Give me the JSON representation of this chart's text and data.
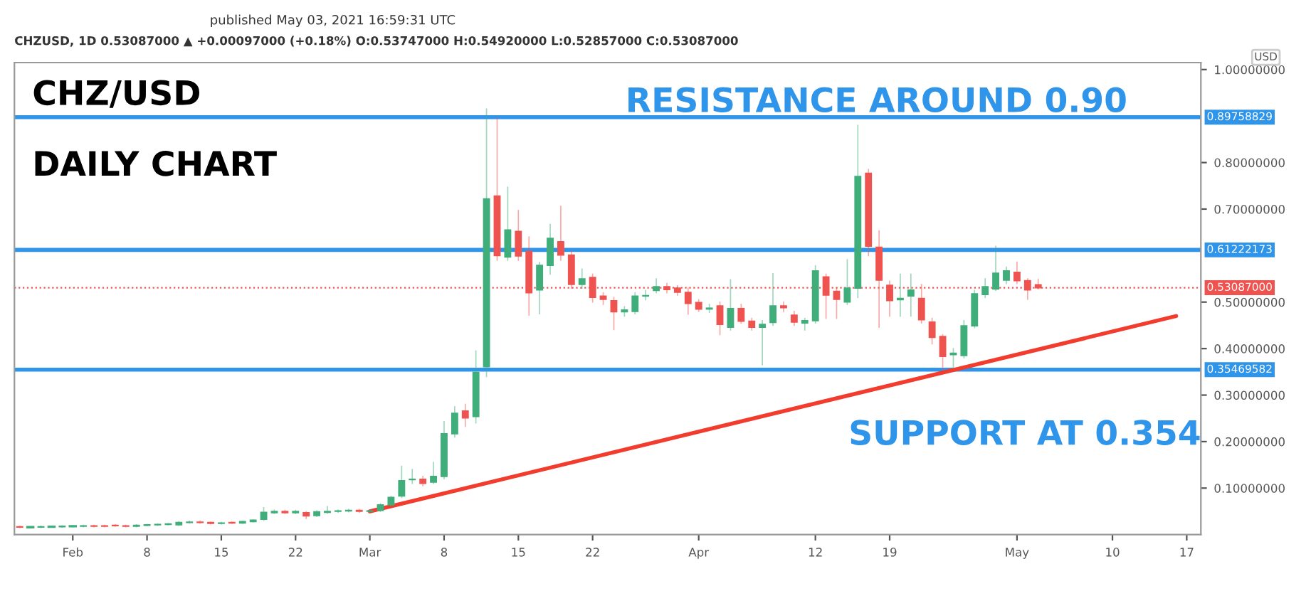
{
  "chart_data": {
    "type": "candlestick",
    "x": [
      "2021-01-27",
      "2021-01-28",
      "2021-01-29",
      "2021-01-30",
      "2021-01-31",
      "2021-02-01",
      "2021-02-02",
      "2021-02-03",
      "2021-02-04",
      "2021-02-05",
      "2021-02-06",
      "2021-02-07",
      "2021-02-08",
      "2021-02-09",
      "2021-02-10",
      "2021-02-11",
      "2021-02-12",
      "2021-02-13",
      "2021-02-14",
      "2021-02-15",
      "2021-02-16",
      "2021-02-17",
      "2021-02-18",
      "2021-02-19",
      "2021-02-20",
      "2021-02-21",
      "2021-02-22",
      "2021-02-23",
      "2021-02-24",
      "2021-02-25",
      "2021-02-26",
      "2021-02-27",
      "2021-02-28",
      "2021-03-01",
      "2021-03-02",
      "2021-03-03",
      "2021-03-04",
      "2021-03-05",
      "2021-03-06",
      "2021-03-07",
      "2021-03-08",
      "2021-03-09",
      "2021-03-10",
      "2021-03-11",
      "2021-03-12",
      "2021-03-13",
      "2021-03-14",
      "2021-03-15",
      "2021-03-16",
      "2021-03-17",
      "2021-03-18",
      "2021-03-19",
      "2021-03-20",
      "2021-03-21",
      "2021-03-22",
      "2021-03-23",
      "2021-03-24",
      "2021-03-25",
      "2021-03-26",
      "2021-03-27",
      "2021-03-28",
      "2021-03-29",
      "2021-03-30",
      "2021-03-31",
      "2021-04-01",
      "2021-04-02",
      "2021-04-03",
      "2021-04-04",
      "2021-04-05",
      "2021-04-06",
      "2021-04-07",
      "2021-04-08",
      "2021-04-09",
      "2021-04-10",
      "2021-04-11",
      "2021-04-12",
      "2021-04-13",
      "2021-04-14",
      "2021-04-15",
      "2021-04-16",
      "2021-04-17",
      "2021-04-18",
      "2021-04-19",
      "2021-04-20",
      "2021-04-21",
      "2021-04-22",
      "2021-04-23",
      "2021-04-24",
      "2021-04-25",
      "2021-04-26",
      "2021-04-27",
      "2021-04-28",
      "2021-04-29",
      "2021-04-30",
      "2021-05-01",
      "2021-05-02",
      "2021-05-03"
    ],
    "ohlc": [
      [
        0.017,
        0.018,
        0.015,
        0.016
      ],
      [
        0.016,
        0.017,
        0.015,
        0.016
      ],
      [
        0.016,
        0.018,
        0.015,
        0.017
      ],
      [
        0.017,
        0.018,
        0.016,
        0.017
      ],
      [
        0.017,
        0.019,
        0.016,
        0.018
      ],
      [
        0.018,
        0.019,
        0.017,
        0.018
      ],
      [
        0.018,
        0.02,
        0.017,
        0.019
      ],
      [
        0.019,
        0.02,
        0.017,
        0.018
      ],
      [
        0.019,
        0.02,
        0.017,
        0.018
      ],
      [
        0.02,
        0.021,
        0.018,
        0.019
      ],
      [
        0.019,
        0.02,
        0.017,
        0.018
      ],
      [
        0.018,
        0.021,
        0.017,
        0.02
      ],
      [
        0.02,
        0.022,
        0.019,
        0.021
      ],
      [
        0.021,
        0.023,
        0.02,
        0.022
      ],
      [
        0.022,
        0.024,
        0.021,
        0.023
      ],
      [
        0.021,
        0.028,
        0.02,
        0.026
      ],
      [
        0.026,
        0.029,
        0.025,
        0.027
      ],
      [
        0.027,
        0.029,
        0.025,
        0.026
      ],
      [
        0.026,
        0.027,
        0.023,
        0.024
      ],
      [
        0.024,
        0.026,
        0.023,
        0.025
      ],
      [
        0.026,
        0.027,
        0.024,
        0.025
      ],
      [
        0.025,
        0.029,
        0.024,
        0.028
      ],
      [
        0.028,
        0.032,
        0.027,
        0.031
      ],
      [
        0.033,
        0.058,
        0.031,
        0.048
      ],
      [
        0.047,
        0.053,
        0.045,
        0.05
      ],
      [
        0.05,
        0.052,
        0.046,
        0.047
      ],
      [
        0.047,
        0.052,
        0.045,
        0.05
      ],
      [
        0.047,
        0.049,
        0.035,
        0.04
      ],
      [
        0.041,
        0.051,
        0.039,
        0.049
      ],
      [
        0.048,
        0.06,
        0.046,
        0.05
      ],
      [
        0.05,
        0.053,
        0.048,
        0.051
      ],
      [
        0.051,
        0.054,
        0.049,
        0.052
      ],
      [
        0.052,
        0.054,
        0.048,
        0.05
      ],
      [
        0.05,
        0.053,
        0.048,
        0.051
      ],
      [
        0.052,
        0.066,
        0.05,
        0.064
      ],
      [
        0.064,
        0.082,
        0.062,
        0.08
      ],
      [
        0.083,
        0.147,
        0.08,
        0.116
      ],
      [
        0.118,
        0.14,
        0.11,
        0.119
      ],
      [
        0.119,
        0.125,
        0.105,
        0.11
      ],
      [
        0.113,
        0.155,
        0.11,
        0.125
      ],
      [
        0.125,
        0.243,
        0.12,
        0.217
      ],
      [
        0.217,
        0.275,
        0.21,
        0.261
      ],
      [
        0.266,
        0.28,
        0.233,
        0.251
      ],
      [
        0.254,
        0.395,
        0.24,
        0.349
      ],
      [
        0.361,
        0.915,
        0.34,
        0.722
      ],
      [
        0.728,
        0.896,
        0.59,
        0.6
      ],
      [
        0.597,
        0.747,
        0.59,
        0.655
      ],
      [
        0.652,
        0.697,
        0.59,
        0.599
      ],
      [
        0.609,
        0.64,
        0.472,
        0.52
      ],
      [
        0.526,
        0.585,
        0.475,
        0.579
      ],
      [
        0.579,
        0.667,
        0.56,
        0.637
      ],
      [
        0.63,
        0.706,
        0.59,
        0.601
      ],
      [
        0.601,
        0.61,
        0.53,
        0.538
      ],
      [
        0.538,
        0.571,
        0.53,
        0.55
      ],
      [
        0.553,
        0.56,
        0.5,
        0.51
      ],
      [
        0.513,
        0.52,
        0.495,
        0.506
      ],
      [
        0.503,
        0.51,
        0.441,
        0.479
      ],
      [
        0.479,
        0.49,
        0.47,
        0.483
      ],
      [
        0.48,
        0.52,
        0.475,
        0.513
      ],
      [
        0.513,
        0.525,
        0.505,
        0.514
      ],
      [
        0.525,
        0.55,
        0.52,
        0.533
      ],
      [
        0.533,
        0.54,
        0.52,
        0.527
      ],
      [
        0.53,
        0.535,
        0.515,
        0.521
      ],
      [
        0.521,
        0.53,
        0.474,
        0.497
      ],
      [
        0.499,
        0.505,
        0.48,
        0.485
      ],
      [
        0.485,
        0.495,
        0.478,
        0.487
      ],
      [
        0.492,
        0.5,
        0.43,
        0.452
      ],
      [
        0.446,
        0.548,
        0.44,
        0.486
      ],
      [
        0.486,
        0.495,
        0.455,
        0.459
      ],
      [
        0.459,
        0.465,
        0.44,
        0.446
      ],
      [
        0.446,
        0.46,
        0.365,
        0.452
      ],
      [
        0.456,
        0.561,
        0.45,
        0.492
      ],
      [
        0.492,
        0.5,
        0.48,
        0.488
      ],
      [
        0.472,
        0.48,
        0.45,
        0.457
      ],
      [
        0.455,
        0.465,
        0.44,
        0.46
      ],
      [
        0.46,
        0.578,
        0.455,
        0.567
      ],
      [
        0.554,
        0.56,
        0.465,
        0.515
      ],
      [
        0.523,
        0.53,
        0.465,
        0.506
      ],
      [
        0.5,
        0.591,
        0.495,
        0.53
      ],
      [
        0.53,
        0.88,
        0.51,
        0.77
      ],
      [
        0.777,
        0.785,
        0.6,
        0.62
      ],
      [
        0.618,
        0.653,
        0.446,
        0.547
      ],
      [
        0.536,
        0.545,
        0.47,
        0.503
      ],
      [
        0.505,
        0.56,
        0.47,
        0.508
      ],
      [
        0.513,
        0.56,
        0.47,
        0.526
      ],
      [
        0.508,
        0.538,
        0.455,
        0.462
      ],
      [
        0.457,
        0.465,
        0.41,
        0.424
      ],
      [
        0.426,
        0.43,
        0.355,
        0.383
      ],
      [
        0.387,
        0.4,
        0.358,
        0.39
      ],
      [
        0.385,
        0.46,
        0.38,
        0.449
      ],
      [
        0.449,
        0.525,
        0.445,
        0.518
      ],
      [
        0.516,
        0.55,
        0.51,
        0.533
      ],
      [
        0.528,
        0.62,
        0.525,
        0.562
      ],
      [
        0.547,
        0.575,
        0.54,
        0.567
      ],
      [
        0.564,
        0.586,
        0.54,
        0.546
      ],
      [
        0.546,
        0.55,
        0.506,
        0.526
      ],
      [
        0.53747,
        0.5492,
        0.52857,
        0.53087
      ]
    ],
    "series": [
      {
        "type": "line",
        "x": [
          "2021-03-01",
          "2021-05-16"
        ],
        "values": [
          0.05,
          0.47
        ],
        "color": "#f23c2e"
      }
    ],
    "xlim": [
      "2021-01-26T12:00",
      "2021-05-18T08:00"
    ],
    "xticks": [
      {
        "value": "2021-02-01",
        "label": "Feb"
      },
      {
        "value": "2021-02-08",
        "label": "8"
      },
      {
        "value": "2021-02-15",
        "label": "15"
      },
      {
        "value": "2021-02-22",
        "label": "22"
      },
      {
        "value": "2021-03-01",
        "label": "Mar"
      },
      {
        "value": "2021-03-08",
        "label": "8"
      },
      {
        "value": "2021-03-15",
        "label": "15"
      },
      {
        "value": "2021-03-22",
        "label": "22"
      },
      {
        "value": "2021-04-01",
        "label": "Apr"
      },
      {
        "value": "2021-04-12",
        "label": "12"
      },
      {
        "value": "2021-04-19",
        "label": "19"
      },
      {
        "value": "2021-05-01",
        "label": "May"
      },
      {
        "value": "2021-05-10",
        "label": "10"
      },
      {
        "value": "2021-05-17",
        "label": "17"
      }
    ],
    "ylim": [
      0,
      1.015
    ],
    "yticks": [
      {
        "value": 0.1,
        "label": "0.10000000"
      },
      {
        "value": 0.2,
        "label": "0.20000000"
      },
      {
        "value": 0.3,
        "label": "0.30000000"
      },
      {
        "value": 0.4,
        "label": "0.40000000"
      },
      {
        "value": 0.5,
        "label": "0.50000000"
      },
      {
        "value": 0.7,
        "label": "0.70000000"
      },
      {
        "value": 0.8,
        "label": "0.80000000"
      },
      {
        "value": 1.0,
        "label": "1.00000000"
      }
    ],
    "ylabel": "USD",
    "ref_lines": [
      {
        "axis": "y",
        "value": 0.89758829,
        "label": "0.89758829",
        "color": "#2f95ea",
        "line_style": "solid"
      },
      {
        "axis": "y",
        "value": 0.61222173,
        "label": "0.61222173",
        "color": "#2f95ea",
        "line_style": "solid"
      },
      {
        "axis": "y",
        "value": 0.35469582,
        "label": "0.35469582",
        "color": "#2f95ea",
        "line_style": "solid"
      },
      {
        "axis": "y",
        "value": 0.53087,
        "label": "0.53087000",
        "color": "#ef5350",
        "line_style": "dotted"
      }
    ],
    "grid": false,
    "annotations": [
      "published May 03, 2021 16:59:31 UTC",
      "CHZUSD, 1D 0.53087000 ▲ +0.00097000 (+0.18%) O:0.53747000 H:0.54920000 L:0.52857000 C:0.53087000",
      "CHZ/USD",
      "DAILY CHART",
      "RESISTANCE AROUND 0.90",
      "SUPPORT AT 0.354"
    ]
  }
}
